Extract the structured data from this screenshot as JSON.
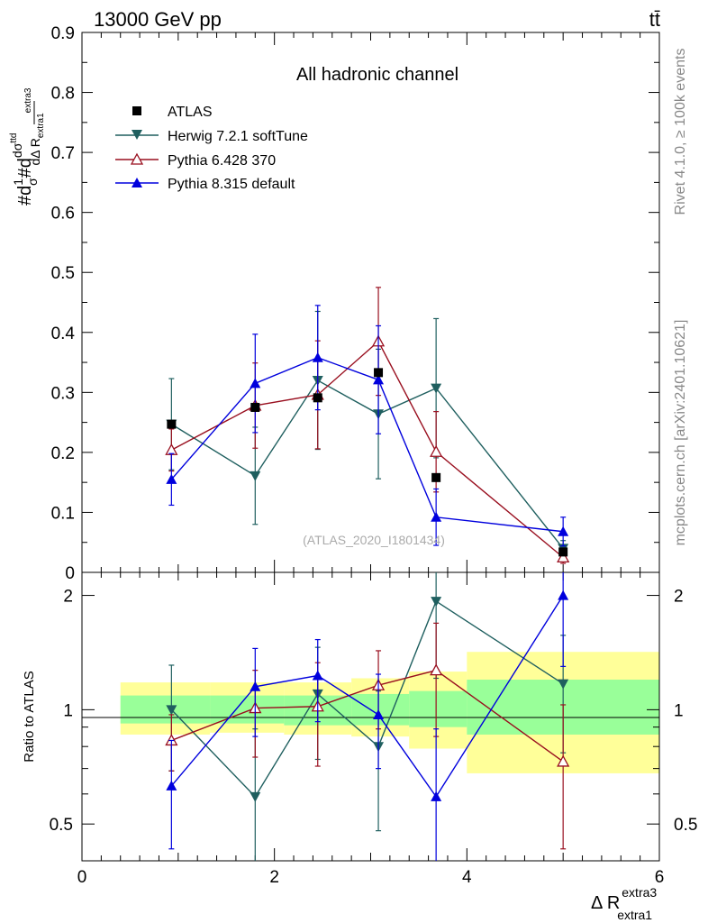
{
  "header": {
    "energy_label": "13000 GeV pp",
    "process_label": "tt̄"
  },
  "side_labels": {
    "rivet": "Rivet 4.1.0, ≥ 100k events",
    "source": "mcplots.cern.ch [arXiv:2401.10621]"
  },
  "chart_data": [
    {
      "type": "line",
      "panel": "main",
      "title": "All hadronic channel",
      "watermark": "(ATLAS_2020_I1801434)",
      "ylabel": "#d1/σ#d dσ^ttd / dΔ R extra1^extra3",
      "ylim": [
        0,
        0.9
      ],
      "xlim": [
        0,
        6
      ],
      "yticks": [
        "0.9",
        "0.8",
        "0.7",
        "0.6",
        "0.5",
        "0.4",
        "0.3",
        "0.2",
        "0.1",
        "0"
      ],
      "x": [
        0.93,
        1.8,
        2.45,
        3.08,
        3.68,
        5.0
      ],
      "series": [
        {
          "name": "ATLAS",
          "color": "#000000",
          "marker": "square",
          "values": [
            0.247,
            0.275,
            0.291,
            0.333,
            0.158,
            0.034
          ]
        },
        {
          "name": "Herwig 7.2.1 softTune",
          "color": "#1f5f5f",
          "marker": "triangle-down",
          "values": [
            0.247,
            0.161,
            0.32,
            0.264,
            0.307,
            0.04
          ],
          "err": [
            0.076,
            0.081,
            0.115,
            0.108,
            0.116,
            0.013
          ]
        },
        {
          "name": "Pythia 6.428 370",
          "color": "#990f1f",
          "marker": "triangle-open",
          "values": [
            0.204,
            0.278,
            0.296,
            0.385,
            0.201,
            0.025
          ],
          "err": [
            0.035,
            0.071,
            0.09,
            0.09,
            0.067,
            0.01
          ]
        },
        {
          "name": "Pythia 8.315 default",
          "color": "#0000dd",
          "marker": "triangle-up",
          "values": [
            0.155,
            0.315,
            0.358,
            0.321,
            0.092,
            0.068
          ],
          "err": [
            0.043,
            0.082,
            0.087,
            0.09,
            0.047,
            0.024
          ]
        }
      ]
    },
    {
      "type": "line",
      "panel": "ratio",
      "ylabel": "Ratio to ATLAS",
      "xlabel": "Δ R extra1^extra3",
      "ylim_log": [
        0.4,
        2.3
      ],
      "xlim": [
        0,
        6
      ],
      "yticks": [
        "2",
        "1",
        "0.5"
      ],
      "xticks": [
        "0",
        "2",
        "4",
        "6"
      ],
      "bands": [
        {
          "x": [
            0.4,
            1.33
          ],
          "green": [
            0.92,
            1.09
          ],
          "yellow": [
            0.86,
            1.18
          ]
        },
        {
          "x": [
            1.33,
            2.1
          ],
          "green": [
            0.92,
            1.09
          ],
          "yellow": [
            0.87,
            1.18
          ]
        },
        {
          "x": [
            2.1,
            2.8
          ],
          "green": [
            0.91,
            1.09
          ],
          "yellow": [
            0.86,
            1.18
          ]
        },
        {
          "x": [
            2.8,
            3.4
          ],
          "green": [
            0.91,
            1.1
          ],
          "yellow": [
            0.85,
            1.21
          ]
        },
        {
          "x": [
            3.4,
            4.0
          ],
          "green": [
            0.9,
            1.12
          ],
          "yellow": [
            0.79,
            1.26
          ]
        },
        {
          "x": [
            4.0,
            6.0
          ],
          "green": [
            0.86,
            1.2
          ],
          "yellow": [
            0.68,
            1.42
          ]
        }
      ],
      "x": [
        0.93,
        1.8,
        2.45,
        3.08,
        3.68,
        5.0
      ],
      "series": [
        {
          "name": "Herwig 7.2.1 softTune",
          "values": [
            1.0,
            0.59,
            1.1,
            0.8,
            1.93,
            1.17
          ],
          "err": [
            0.31,
            0.3,
            0.36,
            0.32,
            0.72,
            0.4
          ]
        },
        {
          "name": "Pythia 6.428 370",
          "values": [
            0.83,
            1.01,
            1.02,
            1.16,
            1.27,
            0.73
          ],
          "err": [
            0.14,
            0.26,
            0.31,
            0.27,
            0.42,
            0.3
          ]
        },
        {
          "name": "Pythia 8.315 default",
          "values": [
            0.63,
            1.15,
            1.23,
            0.97,
            0.59,
            2.0
          ],
          "err": [
            0.2,
            0.3,
            0.3,
            0.27,
            0.3,
            0.7
          ]
        }
      ]
    }
  ]
}
